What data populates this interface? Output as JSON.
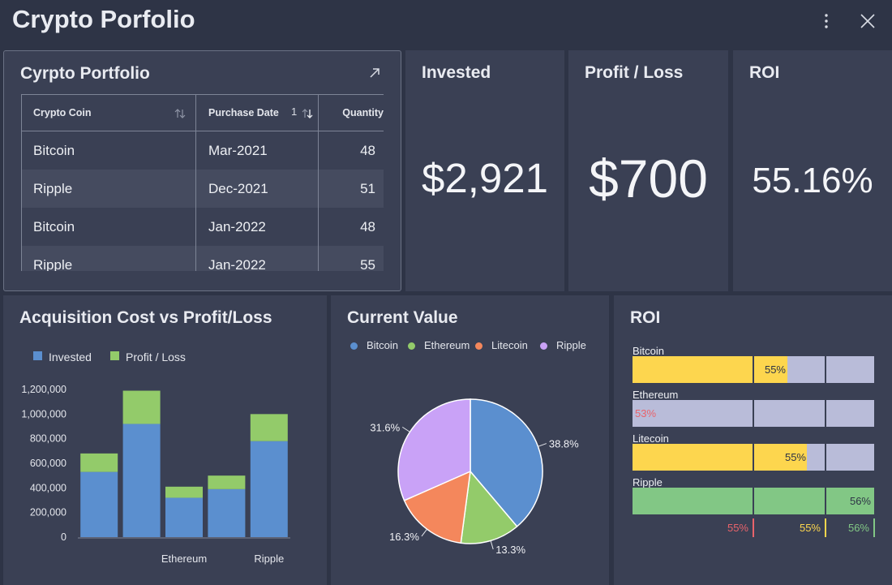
{
  "app": {
    "title": "Crypto Porfolio"
  },
  "colors": {
    "background": "#2e3446",
    "card": "#3a4054",
    "invested": "#5b8fcf",
    "profit_loss": "#93cb6a",
    "bitcoin": "#5b8fcf",
    "ethereum": "#93cb6a",
    "litecoin": "#f4875c",
    "ripple": "#c9a2f7",
    "roi_yellow": "#fdd64e",
    "roi_green": "#82c785",
    "roi_track": "#b9bcd9",
    "roi_red": "#e8636b"
  },
  "portfolio": {
    "title": "Cyrpto Portfolio",
    "columns": {
      "coin": "Crypto Coin",
      "date": "Purchase Date",
      "sort_index": "1",
      "qty": "Quantity"
    },
    "rows": [
      {
        "coin": "Bitcoin",
        "date": "Mar-2021",
        "qty": "48"
      },
      {
        "coin": "Ripple",
        "date": "Dec-2021",
        "qty": "51"
      },
      {
        "coin": "Bitcoin",
        "date": "Jan-2022",
        "qty": "48"
      },
      {
        "coin": "Ripple",
        "date": "Jan-2022",
        "qty": "55"
      }
    ]
  },
  "kpis": {
    "invested": {
      "title": "Invested",
      "value": "$2,921"
    },
    "profit": {
      "title": "Profit / Loss",
      "value": "$700"
    },
    "roi": {
      "title": "ROI",
      "value": "55.16%"
    }
  },
  "acq_chart": {
    "title": "Acquisition Cost vs Profit/Loss",
    "legend": [
      "Invested",
      "Profit / Loss"
    ]
  },
  "chart_data": [
    {
      "type": "bar",
      "stacked": true,
      "title": "Acquisition Cost vs Profit/Loss",
      "categories": [
        "",
        "",
        "Ethereum",
        "",
        "Ripple"
      ],
      "series": [
        {
          "name": "Invested",
          "values": [
            530000,
            920000,
            320000,
            390000,
            780000
          ]
        },
        {
          "name": "Profit / Loss",
          "values": [
            150000,
            270000,
            90000,
            110000,
            220000
          ]
        }
      ],
      "ylim": [
        0,
        1200000
      ],
      "yticks": [
        {
          "v": 0,
          "label": "0"
        },
        {
          "v": 200000,
          "label": "200,000"
        },
        {
          "v": 400000,
          "label": "400,000"
        },
        {
          "v": 600000,
          "label": "600,000"
        },
        {
          "v": 800000,
          "label": "800,000"
        },
        {
          "v": 1000000,
          "label": "1,000,000"
        },
        {
          "v": 1200000,
          "label": "1,200,000"
        }
      ],
      "xtick_labels": [
        "",
        "",
        "Ethereum",
        "",
        "Ripple"
      ],
      "legend_position": "top-left"
    },
    {
      "type": "pie",
      "title": "Current Value",
      "labels": [
        "Bitcoin",
        "Ethereum",
        "Litecoin",
        "Ripple"
      ],
      "values": [
        38.8,
        13.3,
        16.3,
        31.6
      ],
      "value_labels": [
        "38.8%",
        "13.3%",
        "16.3%",
        "31.6%"
      ],
      "colors": [
        "#5b8fcf",
        "#93cb6a",
        "#f4875c",
        "#c9a2f7"
      ],
      "legend_position": "top"
    },
    {
      "type": "bar",
      "orientation": "horizontal",
      "title": "ROI",
      "categories": [
        "Bitcoin",
        "Ethereum",
        "Litecoin",
        "Ripple"
      ],
      "values": [
        55,
        53,
        55,
        56
      ],
      "value_labels": [
        "55%",
        "53%",
        "55%",
        "56%"
      ],
      "xlim": [
        0,
        100
      ],
      "bands": [
        {
          "label": "55%",
          "color": "#e8636b"
        },
        {
          "label": "55%",
          "color": "#fdd64e"
        },
        {
          "label": "56%",
          "color": "#82c785"
        }
      ]
    }
  ]
}
